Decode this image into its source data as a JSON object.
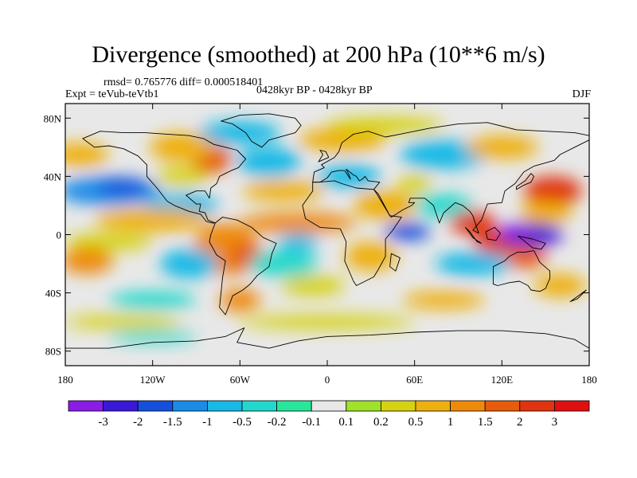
{
  "title": "Divergence (smoothed) at 200 hPa (10**6 m/s)",
  "stats": "rmsd= 0.765776  diff= 0.000518401",
  "experiment": "Expt = teVub-teVtb1",
  "period": "0428kyr BP - 0428kyr BP",
  "season": "DJF",
  "lon_ticks": [
    "180",
    "120W",
    "60W",
    "0",
    "60E",
    "120E",
    "180"
  ],
  "lat_ticks": [
    "80N",
    "40N",
    "0",
    "40S",
    "80S"
  ],
  "colorbar": {
    "labels": [
      "-3",
      "-2",
      "-1.5",
      "-1",
      "-0.5",
      "-0.2",
      "-0.1",
      "0.1",
      "0.2",
      "0.5",
      "1",
      "1.5",
      "2",
      "3"
    ],
    "colors": [
      "#8a1ce6",
      "#3a18d8",
      "#1550dc",
      "#1a8ce8",
      "#18b9e6",
      "#22d8cc",
      "#2ae69a",
      "#e8e8e8",
      "#9ee22a",
      "#d6d212",
      "#eeb010",
      "#ee8a0a",
      "#e65c0a",
      "#e03410",
      "#e01010"
    ]
  },
  "chart_data": {
    "type": "heatmap",
    "title": "Divergence (smoothed) at 200 hPa (10**6 m/s)",
    "xlabel": "",
    "ylabel": "",
    "x": [
      "180",
      "120W",
      "60W",
      "0",
      "60E",
      "120E",
      "180"
    ],
    "y": [
      "80N",
      "40N",
      "0",
      "40S",
      "80S"
    ],
    "xlim": [
      -180,
      180
    ],
    "ylim": [
      -90,
      90
    ],
    "levels": [
      -3,
      -2,
      -1.5,
      -1,
      -0.5,
      -0.2,
      -0.1,
      0.1,
      0.2,
      0.5,
      1,
      1.5,
      2,
      3
    ],
    "features": [
      {
        "lon": 130,
        "lat": 0,
        "value": -3.5
      },
      {
        "lon": 55,
        "lat": 2,
        "value": -2.2
      },
      {
        "lon": -155,
        "lat": 32,
        "value": -1.5
      },
      {
        "lon": 100,
        "lat": 8,
        "value": 2.5
      },
      {
        "lon": 155,
        "lat": 30,
        "value": 2.2
      },
      {
        "lon": 135,
        "lat": -15,
        "value": 2.0
      },
      {
        "lon": -60,
        "lat": -12,
        "value": 1.2
      },
      {
        "lon": -80,
        "lat": 52,
        "value": 1.5
      },
      {
        "lon": -10,
        "lat": 5,
        "value": 1.0
      },
      {
        "lon": -165,
        "lat": -18,
        "value": 1.5
      },
      {
        "lon": -100,
        "lat": 10,
        "value": -0.8
      },
      {
        "lon": -20,
        "lat": 52,
        "value": -0.6
      }
    ]
  }
}
